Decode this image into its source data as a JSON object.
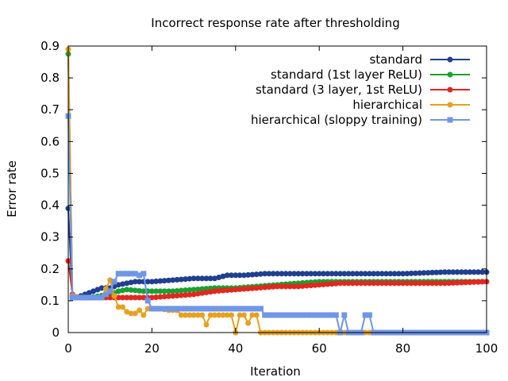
{
  "chart_data": {
    "type": "line",
    "title": "Incorrect response rate after thresholding",
    "xlabel": "Iteration",
    "ylabel": "Error rate",
    "xlim": [
      0,
      100
    ],
    "ylim": [
      0,
      0.9
    ],
    "xticks": [
      0,
      20,
      40,
      60,
      80,
      100
    ],
    "yticks": [
      0,
      0.1,
      0.2,
      0.3,
      0.4,
      0.5,
      0.6,
      0.7,
      0.8,
      0.9
    ],
    "xtick_labels": [
      "0",
      "20",
      "40",
      "60",
      "80",
      "100"
    ],
    "ytick_labels": [
      "0",
      "0.1",
      "0.2",
      "0.3",
      "0.4",
      "0.5",
      "0.6",
      "0.7",
      "0.8",
      "0.9"
    ],
    "grid": false,
    "legend_position": "top-right",
    "series": [
      {
        "name": "standard",
        "color": "#1f3f8f",
        "marker": "circle",
        "x": [
          0,
          1,
          2,
          4,
          6,
          8,
          10,
          12,
          14,
          16,
          18,
          20,
          25,
          30,
          35,
          38,
          42,
          47,
          52,
          60,
          65,
          70,
          80,
          90,
          100
        ],
        "y": [
          0.39,
          0.11,
          0.11,
          0.12,
          0.13,
          0.14,
          0.14,
          0.15,
          0.155,
          0.16,
          0.16,
          0.16,
          0.165,
          0.17,
          0.17,
          0.18,
          0.18,
          0.185,
          0.185,
          0.185,
          0.185,
          0.185,
          0.185,
          0.19,
          0.19
        ]
      },
      {
        "name": "standard (1st layer ReLU)",
        "color": "#1aa032",
        "marker": "circle",
        "x": [
          0,
          1,
          2,
          5,
          10,
          12,
          14,
          18,
          20,
          25,
          30,
          35,
          40,
          45,
          50,
          55,
          60,
          65,
          70,
          75,
          80,
          90,
          100
        ],
        "y": [
          0.875,
          0.115,
          0.11,
          0.11,
          0.12,
          0.13,
          0.135,
          0.13,
          0.13,
          0.13,
          0.135,
          0.14,
          0.14,
          0.145,
          0.15,
          0.155,
          0.16,
          0.16,
          0.16,
          0.16,
          0.16,
          0.16,
          0.16
        ]
      },
      {
        "name": "standard (3 layer, 1st ReLU)",
        "color": "#e0281e",
        "marker": "circle",
        "x": [
          0,
          1,
          2,
          5,
          10,
          15,
          20,
          25,
          30,
          35,
          40,
          45,
          50,
          55,
          60,
          65,
          70,
          75,
          80,
          85,
          90,
          100
        ],
        "y": [
          0.225,
          0.12,
          0.11,
          0.11,
          0.11,
          0.11,
          0.11,
          0.115,
          0.12,
          0.13,
          0.135,
          0.14,
          0.145,
          0.145,
          0.15,
          0.155,
          0.155,
          0.155,
          0.155,
          0.155,
          0.155,
          0.16
        ]
      },
      {
        "name": "hierarchical",
        "color": "#e8a020",
        "marker": "circle",
        "x": [
          0,
          1,
          3,
          5,
          8,
          10,
          11,
          12,
          13,
          14,
          15,
          16,
          17,
          18,
          19,
          20,
          22,
          24,
          26,
          27,
          28,
          30,
          32,
          33,
          34,
          36,
          38,
          39,
          40,
          41,
          42,
          43,
          44,
          45,
          46,
          47,
          50,
          55,
          60,
          65,
          67,
          70,
          72,
          75,
          80,
          90,
          100
        ],
        "y": [
          0.89,
          0.115,
          0.11,
          0.11,
          0.11,
          0.165,
          0.115,
          0.08,
          0.08,
          0.065,
          0.06,
          0.06,
          0.07,
          0.055,
          0.075,
          0.075,
          0.075,
          0.07,
          0.07,
          0.055,
          0.055,
          0.055,
          0.055,
          0.025,
          0.055,
          0.055,
          0.055,
          0.055,
          0.0,
          0.055,
          0.055,
          0.03,
          0.055,
          0.055,
          0.0,
          0.0,
          0.0,
          0.0,
          0.0,
          0.0,
          0.0,
          0.0,
          0.0,
          0.0,
          0.0,
          0.0,
          0.0
        ]
      },
      {
        "name": "hierarchical (sloppy training)",
        "color": "#7096e6",
        "marker": "square",
        "x": [
          0,
          1,
          3,
          5,
          8,
          10,
          11,
          12,
          13,
          14,
          15,
          16,
          17,
          18,
          19,
          20,
          25,
          30,
          35,
          40,
          45,
          46,
          47,
          50,
          55,
          60,
          64,
          65,
          66,
          67,
          68,
          70,
          71,
          72,
          73,
          75,
          80,
          90,
          100
        ],
        "y": [
          0.68,
          0.11,
          0.11,
          0.11,
          0.11,
          0.13,
          0.16,
          0.185,
          0.185,
          0.185,
          0.185,
          0.185,
          0.18,
          0.185,
          0.1,
          0.075,
          0.075,
          0.075,
          0.075,
          0.075,
          0.075,
          0.075,
          0.055,
          0.055,
          0.055,
          0.055,
          0.055,
          0.0,
          0.055,
          0.0,
          0.0,
          0.0,
          0.055,
          0.055,
          0.0,
          0.0,
          0.0,
          0.0,
          0.0
        ]
      }
    ]
  }
}
